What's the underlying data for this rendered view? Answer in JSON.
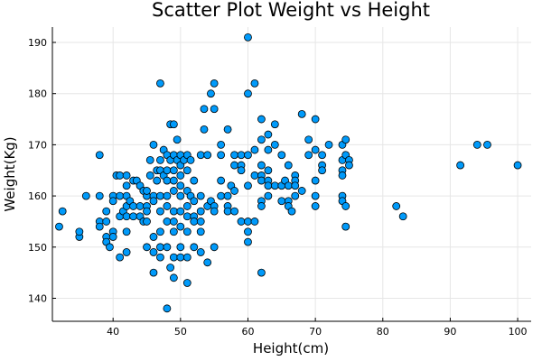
{
  "chart_data": {
    "type": "scatter",
    "title": "Scatter Plot Weight vs Height",
    "xlabel": "Height(cm)",
    "ylabel": "Weight(Kg)",
    "xlim": [
      31,
      102
    ],
    "ylim": [
      135.5,
      193
    ],
    "xticks": [
      40,
      50,
      60,
      70,
      80,
      90,
      100
    ],
    "yticks": [
      140,
      150,
      160,
      170,
      180,
      190
    ],
    "grid": true,
    "legend": "none",
    "marker_color": "#009AFA",
    "points": [
      [
        32.5,
        157
      ],
      [
        32,
        154
      ],
      [
        35,
        152
      ],
      [
        35,
        153
      ],
      [
        36,
        160
      ],
      [
        38,
        168
      ],
      [
        38,
        160
      ],
      [
        38,
        155
      ],
      [
        38,
        154
      ],
      [
        39,
        157
      ],
      [
        39,
        155
      ],
      [
        39,
        152
      ],
      [
        39,
        151
      ],
      [
        39.5,
        150
      ],
      [
        40,
        160
      ],
      [
        40,
        159
      ],
      [
        40,
        153
      ],
      [
        40,
        152
      ],
      [
        40.5,
        164
      ],
      [
        41,
        164
      ],
      [
        41,
        160
      ],
      [
        41,
        156
      ],
      [
        41,
        148
      ],
      [
        41.5,
        157
      ],
      [
        42,
        164
      ],
      [
        42,
        162
      ],
      [
        42,
        160
      ],
      [
        42,
        158
      ],
      [
        42,
        156
      ],
      [
        42,
        153
      ],
      [
        42,
        149
      ],
      [
        42.5,
        159
      ],
      [
        43,
        163
      ],
      [
        43,
        158
      ],
      [
        43,
        156
      ],
      [
        43.5,
        163
      ],
      [
        44,
        158
      ],
      [
        44,
        156
      ],
      [
        44,
        162
      ],
      [
        44.5,
        161
      ],
      [
        44.5,
        155
      ],
      [
        45,
        160
      ],
      [
        45,
        161
      ],
      [
        45,
        158
      ],
      [
        45,
        157
      ],
      [
        45,
        150
      ],
      [
        45,
        155
      ],
      [
        45.5,
        167
      ],
      [
        45.5,
        164
      ],
      [
        46,
        160
      ],
      [
        46,
        159
      ],
      [
        46,
        152
      ],
      [
        46,
        149
      ],
      [
        46,
        145
      ],
      [
        46,
        170
      ],
      [
        46.5,
        165
      ],
      [
        46.5,
        163
      ],
      [
        47,
        182
      ],
      [
        47,
        167
      ],
      [
        47,
        165
      ],
      [
        47,
        160
      ],
      [
        47,
        157
      ],
      [
        47,
        153
      ],
      [
        47,
        150
      ],
      [
        47,
        148
      ],
      [
        47.5,
        169
      ],
      [
        47.5,
        164
      ],
      [
        48,
        168
      ],
      [
        48,
        165
      ],
      [
        48,
        163
      ],
      [
        48,
        160
      ],
      [
        48,
        158
      ],
      [
        48,
        155
      ],
      [
        48,
        150
      ],
      [
        48,
        138
      ],
      [
        48.5,
        174
      ],
      [
        48.5,
        167
      ],
      [
        48.5,
        146
      ],
      [
        49,
        174
      ],
      [
        49,
        168
      ],
      [
        49,
        165
      ],
      [
        49,
        163
      ],
      [
        49,
        161
      ],
      [
        49,
        157
      ],
      [
        49,
        155
      ],
      [
        49,
        153
      ],
      [
        49,
        148
      ],
      [
        49,
        144
      ],
      [
        49.5,
        171
      ],
      [
        49.5,
        167
      ],
      [
        50,
        168
      ],
      [
        50,
        166
      ],
      [
        50,
        164
      ],
      [
        50,
        162
      ],
      [
        50,
        160
      ],
      [
        50,
        157
      ],
      [
        50,
        154
      ],
      [
        50,
        150
      ],
      [
        50,
        148
      ],
      [
        50.5,
        167
      ],
      [
        51,
        168
      ],
      [
        51,
        165
      ],
      [
        51,
        161
      ],
      [
        51,
        158
      ],
      [
        51,
        156
      ],
      [
        51,
        153
      ],
      [
        51,
        148
      ],
      [
        51,
        143
      ],
      [
        51.5,
        167
      ],
      [
        51.5,
        160
      ],
      [
        52,
        163
      ],
      [
        52,
        159
      ],
      [
        52,
        156
      ],
      [
        52,
        155
      ],
      [
        52,
        150
      ],
      [
        53,
        168
      ],
      [
        53,
        160
      ],
      [
        53,
        157
      ],
      [
        53,
        155
      ],
      [
        53,
        153
      ],
      [
        53,
        149
      ],
      [
        53.5,
        177
      ],
      [
        53.5,
        173
      ],
      [
        54,
        168
      ],
      [
        54,
        158
      ],
      [
        54,
        147
      ],
      [
        54.5,
        180
      ],
      [
        54.5,
        159
      ],
      [
        55,
        182
      ],
      [
        55,
        177
      ],
      [
        55,
        158
      ],
      [
        55,
        157
      ],
      [
        55,
        150
      ],
      [
        56,
        170
      ],
      [
        56,
        168
      ],
      [
        56,
        163
      ],
      [
        56,
        160
      ],
      [
        57,
        173
      ],
      [
        57,
        160
      ],
      [
        57,
        158
      ],
      [
        57,
        157
      ],
      [
        57.5,
        162
      ],
      [
        58,
        168
      ],
      [
        58,
        166
      ],
      [
        58,
        161
      ],
      [
        58,
        157
      ],
      [
        59,
        168
      ],
      [
        59,
        166
      ],
      [
        59,
        165
      ],
      [
        59,
        155
      ],
      [
        60,
        191
      ],
      [
        60,
        180
      ],
      [
        60,
        162
      ],
      [
        60,
        151
      ],
      [
        60,
        155
      ],
      [
        60,
        168
      ],
      [
        60,
        153
      ],
      [
        61,
        182
      ],
      [
        61,
        169
      ],
      [
        61,
        164
      ],
      [
        61,
        155
      ],
      [
        62,
        175
      ],
      [
        62,
        171
      ],
      [
        62,
        166
      ],
      [
        62,
        164
      ],
      [
        62,
        163
      ],
      [
        62,
        159
      ],
      [
        62,
        158
      ],
      [
        62,
        145
      ],
      [
        63,
        172
      ],
      [
        63,
        169
      ],
      [
        63,
        165
      ],
      [
        63,
        163
      ],
      [
        63,
        162
      ],
      [
        63,
        160
      ],
      [
        64,
        174
      ],
      [
        64,
        170
      ],
      [
        64,
        162
      ],
      [
        65,
        168
      ],
      [
        65,
        162
      ],
      [
        65,
        159
      ],
      [
        65.5,
        163
      ],
      [
        66,
        166
      ],
      [
        66,
        162
      ],
      [
        66,
        159
      ],
      [
        66,
        158
      ],
      [
        66.5,
        157
      ],
      [
        67,
        164
      ],
      [
        67,
        163
      ],
      [
        67,
        162
      ],
      [
        67,
        160
      ],
      [
        68,
        176
      ],
      [
        68,
        161
      ],
      [
        69,
        171
      ],
      [
        69,
        168
      ],
      [
        70,
        175
      ],
      [
        70,
        169
      ],
      [
        70,
        163
      ],
      [
        70,
        160
      ],
      [
        70,
        158
      ],
      [
        71,
        168
      ],
      [
        71,
        166
      ],
      [
        71,
        165
      ],
      [
        72,
        170
      ],
      [
        74,
        170
      ],
      [
        74,
        167
      ],
      [
        74,
        165
      ],
      [
        74,
        164
      ],
      [
        74,
        160
      ],
      [
        74,
        159
      ],
      [
        74.5,
        171
      ],
      [
        74.5,
        168
      ],
      [
        74.5,
        158
      ],
      [
        74.5,
        154
      ],
      [
        75,
        167
      ],
      [
        75,
        166
      ],
      [
        82,
        158
      ],
      [
        83,
        156
      ],
      [
        91.5,
        166
      ],
      [
        94,
        170
      ],
      [
        95.5,
        170
      ],
      [
        100,
        166
      ]
    ]
  }
}
